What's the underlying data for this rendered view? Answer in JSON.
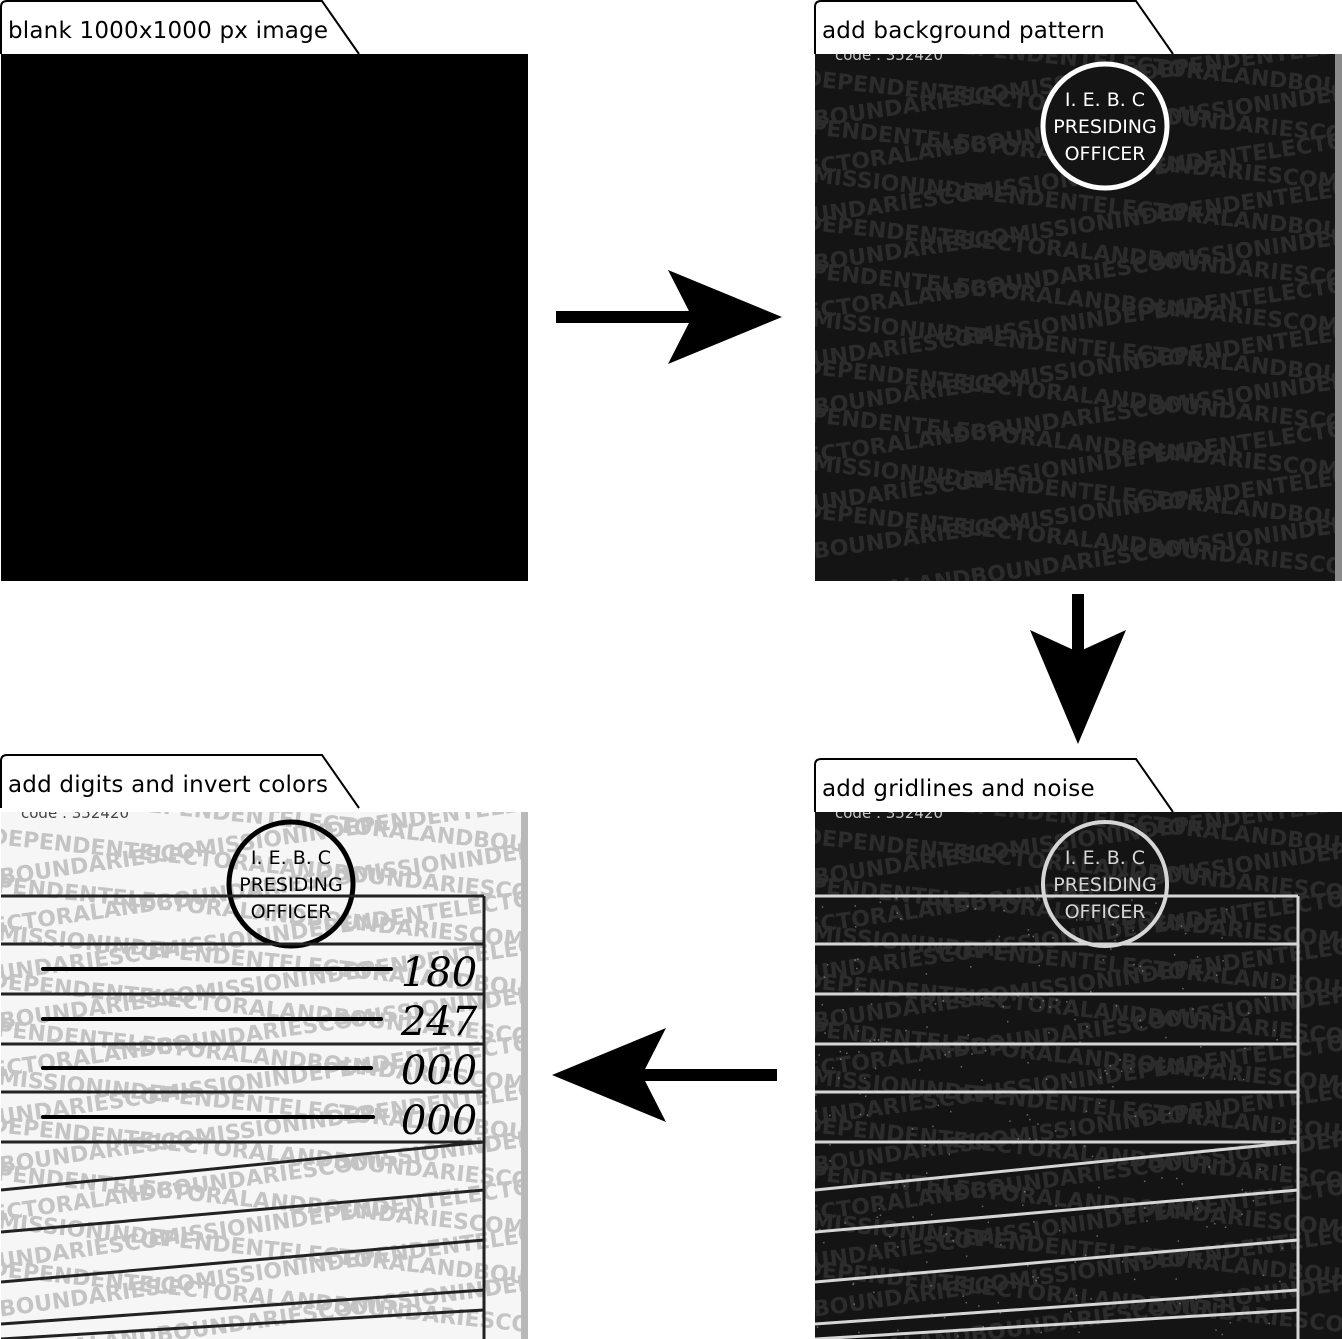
{
  "steps": [
    {
      "label": "blank 1000x1000 px image"
    },
    {
      "label": "add background pattern"
    },
    {
      "label": "add gridlines and noise"
    },
    {
      "label": "add digits and invert colors"
    }
  ],
  "watermark": {
    "rows": [
      "COMISSIONINDEPENDENTELECTORALANDBOUNDARIESCOMISSIONINDEPENDENT",
      "NDBOUNDARIESCOMISSIONINDEPENDENTELECTORALANDBOUNDARIESCOMISSION",
      "INDEPENDENTELECTORALANDBOUNDARIESCOMISSIONINDEPENDENTELECTORAL",
      "ELECTORALANDBOUNDARIESCOMISSIONINDEPENDENTELECTORALANDBOUNDARIES",
      "DEPENDENTELECTORALANDBOUNDARIESCOMISSIONINDEPENDENTELECTORALAND",
      "BOUNDARIESCOMISSIONINDEPENDENTELECTORALANDBOUNDARIESCOMISSIONIN"
    ]
  },
  "stamp": {
    "lines": [
      "I. E. B. C",
      "PRESIDING",
      "OFFICER"
    ]
  },
  "header_fragment": "code : 352420",
  "digits": [
    "180",
    "247",
    "000",
    "000"
  ],
  "colors": {
    "dark_bg": "#141414",
    "pattern_dark": "#2c2c2c",
    "pattern_light": "#c4c4c4",
    "grid_light": "#d6d6d6",
    "ink": "#000000"
  }
}
